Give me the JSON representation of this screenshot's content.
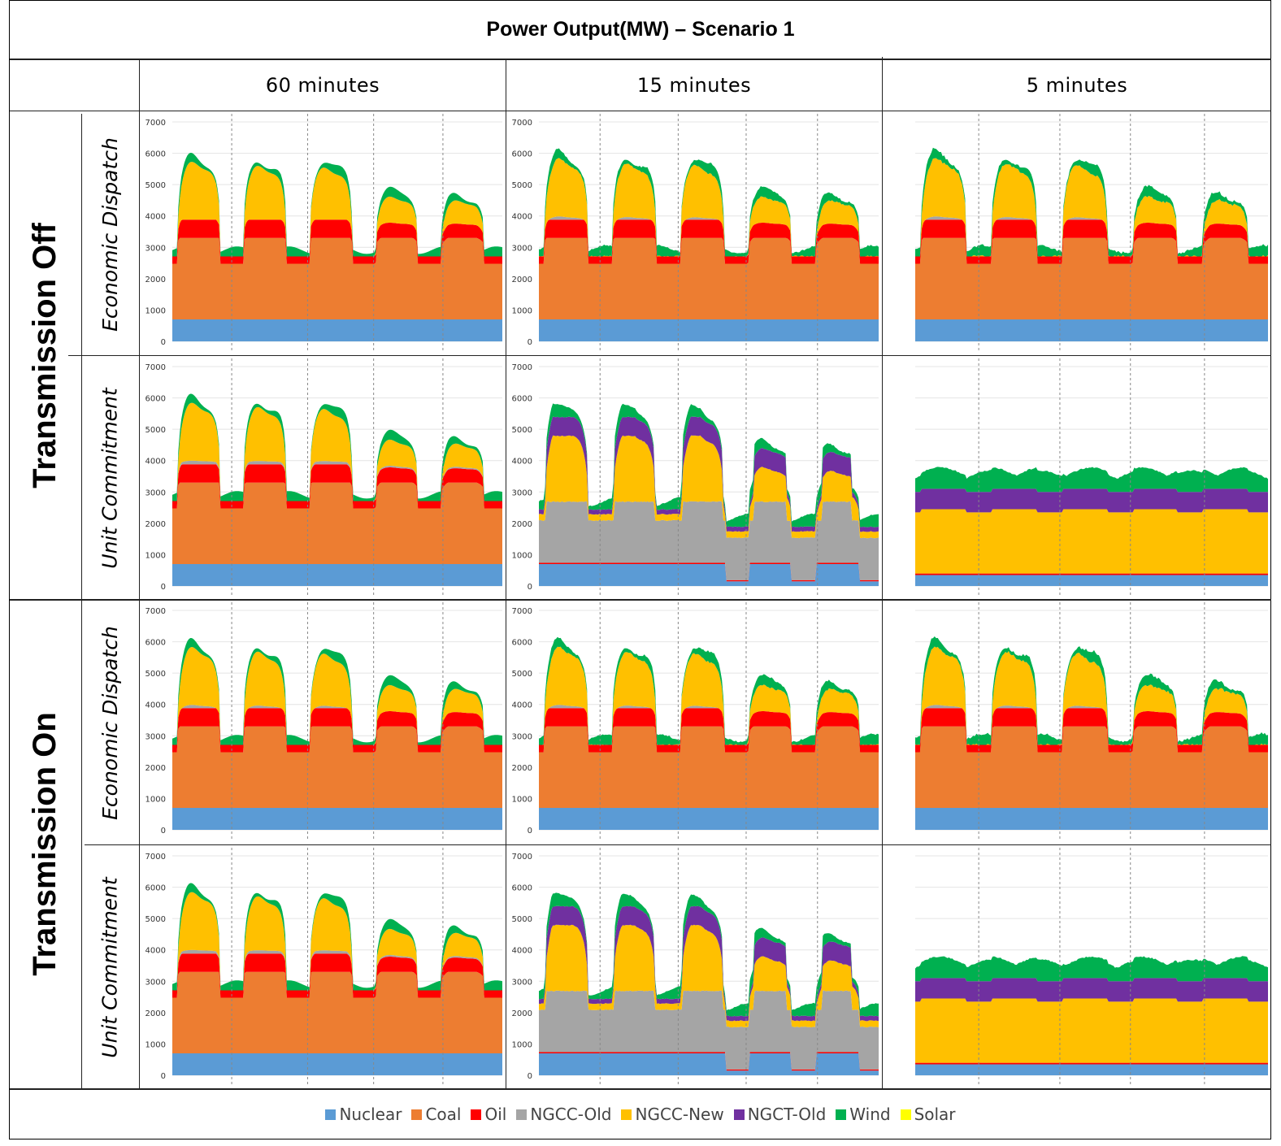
{
  "title": "Power Output(MW) – Scenario 1",
  "columns": [
    "60 minutes",
    "15 minutes",
    "5 minutes"
  ],
  "groups": [
    "Transmission Off",
    "Transmission On"
  ],
  "subrows": [
    "Economic Dispatch",
    "Unit Commitment"
  ],
  "legend": [
    {
      "label": "Nuclear",
      "color": "#5b9bd5"
    },
    {
      "label": "Coal",
      "color": "#ed7d31"
    },
    {
      "label": "Oil",
      "color": "#ff0000"
    },
    {
      "label": "NGCC-Old",
      "color": "#a5a5a5"
    },
    {
      "label": "NGCC-New",
      "color": "#ffc000"
    },
    {
      "label": "NGCT-Old",
      "color": "#7030a0"
    },
    {
      "label": "Wind",
      "color": "#00b050"
    },
    {
      "label": "Solar",
      "color": "#ffff00"
    }
  ],
  "chart_data": [
    {
      "type": "area",
      "panel": "Transmission Off / Economic Dispatch / 60 minutes",
      "ylim": [
        0,
        7000
      ],
      "yticks": [
        "0",
        "1000",
        "2000",
        "3000",
        "4000",
        "5000",
        "6000",
        "7000"
      ],
      "stack": {
        "nuclear": 700,
        "coal": 2600,
        "oil": 580,
        "ngcc_old": 0,
        "ngcc_new": "peaks up to ~1900",
        "ngct_old": 0,
        "wind": "~150-300"
      }
    },
    {
      "type": "area",
      "panel": "Transmission Off / Economic Dispatch / 15 minutes",
      "ylim": [
        0,
        7000
      ],
      "yticks": [
        "0",
        "1000",
        "2000",
        "3000",
        "4000",
        "5000",
        "6000",
        "7000"
      ],
      "stack": {
        "nuclear": 700,
        "coal": 2600,
        "oil": 580,
        "ngcc_old": 0,
        "ngcc_new": "peaks up to ~1900",
        "ngct_old": 0,
        "wind": "~150-300"
      }
    },
    {
      "type": "area",
      "panel": "Transmission Off / Economic Dispatch / 5 minutes",
      "ylim": [
        0,
        7000
      ],
      "stack": {
        "nuclear": 700,
        "coal": 2600,
        "oil": 580,
        "ngcc_new": "peaks up to ~1900",
        "wind": "~100-250"
      }
    },
    {
      "type": "area",
      "panel": "Transmission Off / Unit Commitment / 60 minutes",
      "ylim": [
        0,
        7000
      ],
      "yticks": [
        "0",
        "1000",
        "2000",
        "3000",
        "4000",
        "5000",
        "6000",
        "7000"
      ],
      "stack": {
        "nuclear": 700,
        "coal": 2600,
        "oil": 580,
        "ngcc_new": "peaks up to ~1900",
        "wind": "~150-300"
      }
    },
    {
      "type": "area",
      "panel": "Transmission Off / Unit Commitment / 15 minutes",
      "ylim": [
        0,
        7000
      ],
      "yticks": [
        "0",
        "1000",
        "2000",
        "3000",
        "4000",
        "5000",
        "6000",
        "7000"
      ],
      "stack": {
        "nuclear": 700,
        "oil": 50,
        "ngcc_old": 1950,
        "ngcc_new": 2100,
        "ngct_old": 600,
        "wind": "~200-400"
      }
    },
    {
      "type": "area",
      "panel": "Transmission Off / Unit Commitment / 5 minutes",
      "ylim": [
        0,
        7000
      ],
      "stack": {
        "nuclear": 350,
        "oil": 50,
        "ngcc_new": 2050,
        "ngct_old": 650,
        "wind": "~300-800"
      }
    },
    {
      "type": "area",
      "panel": "Transmission On / Economic Dispatch / 60 minutes",
      "ylim": [
        0,
        7000
      ],
      "yticks": [
        "0",
        "1000",
        "2000",
        "3000",
        "4000",
        "5000",
        "6000",
        "7000"
      ],
      "stack": {
        "nuclear": 700,
        "coal": 2600,
        "oil": 580,
        "ngcc_old": "~300 at peaks",
        "ngcc_new": "peaks up to ~1800",
        "wind": "~150-300"
      }
    },
    {
      "type": "area",
      "panel": "Transmission On / Economic Dispatch / 15 minutes",
      "ylim": [
        0,
        7000
      ],
      "yticks": [
        "0",
        "1000",
        "2000",
        "3000",
        "4000",
        "5000",
        "6000",
        "7000"
      ],
      "stack": {
        "nuclear": 700,
        "coal": 2600,
        "oil": 580,
        "ngcc_old": "~300 at peaks",
        "ngcc_new": "peaks up to ~1800",
        "wind": "~150-300"
      }
    },
    {
      "type": "area",
      "panel": "Transmission On / Economic Dispatch / 5 minutes",
      "ylim": [
        0,
        7000
      ],
      "stack": {
        "nuclear": 700,
        "coal": 2600,
        "oil": 580,
        "ngcc_old": "~300 at peaks",
        "ngcc_new": "peaks up to ~1800",
        "wind": "~100-250"
      }
    },
    {
      "type": "area",
      "panel": "Transmission On / Unit Commitment / 60 minutes",
      "ylim": [
        0,
        7000
      ],
      "yticks": [
        "0",
        "1000",
        "2000",
        "3000",
        "4000",
        "5000",
        "6000",
        "7000"
      ],
      "stack": {
        "nuclear": 700,
        "coal": 2600,
        "oil": 580,
        "ngcc_old": "~200",
        "ngcc_new": "peaks up to ~1900",
        "wind": "~150-300"
      }
    },
    {
      "type": "area",
      "panel": "Transmission On / Unit Commitment / 15 minutes",
      "ylim": [
        0,
        7000
      ],
      "yticks": [
        "0",
        "1000",
        "2000",
        "3000",
        "4000",
        "5000",
        "6000",
        "7000"
      ],
      "stack": {
        "nuclear": 700,
        "oil": 50,
        "ngcc_old": 1950,
        "ngcc_new": 2100,
        "ngct_old": 600,
        "wind": "~200-400"
      }
    },
    {
      "type": "area",
      "panel": "Transmission On / Unit Commitment / 5 minutes",
      "ylim": [
        0,
        7000
      ],
      "stack": {
        "nuclear": 350,
        "oil": 50,
        "ngcc_new": 2050,
        "ngct_old": 650,
        "wind": "~300-800"
      }
    }
  ]
}
